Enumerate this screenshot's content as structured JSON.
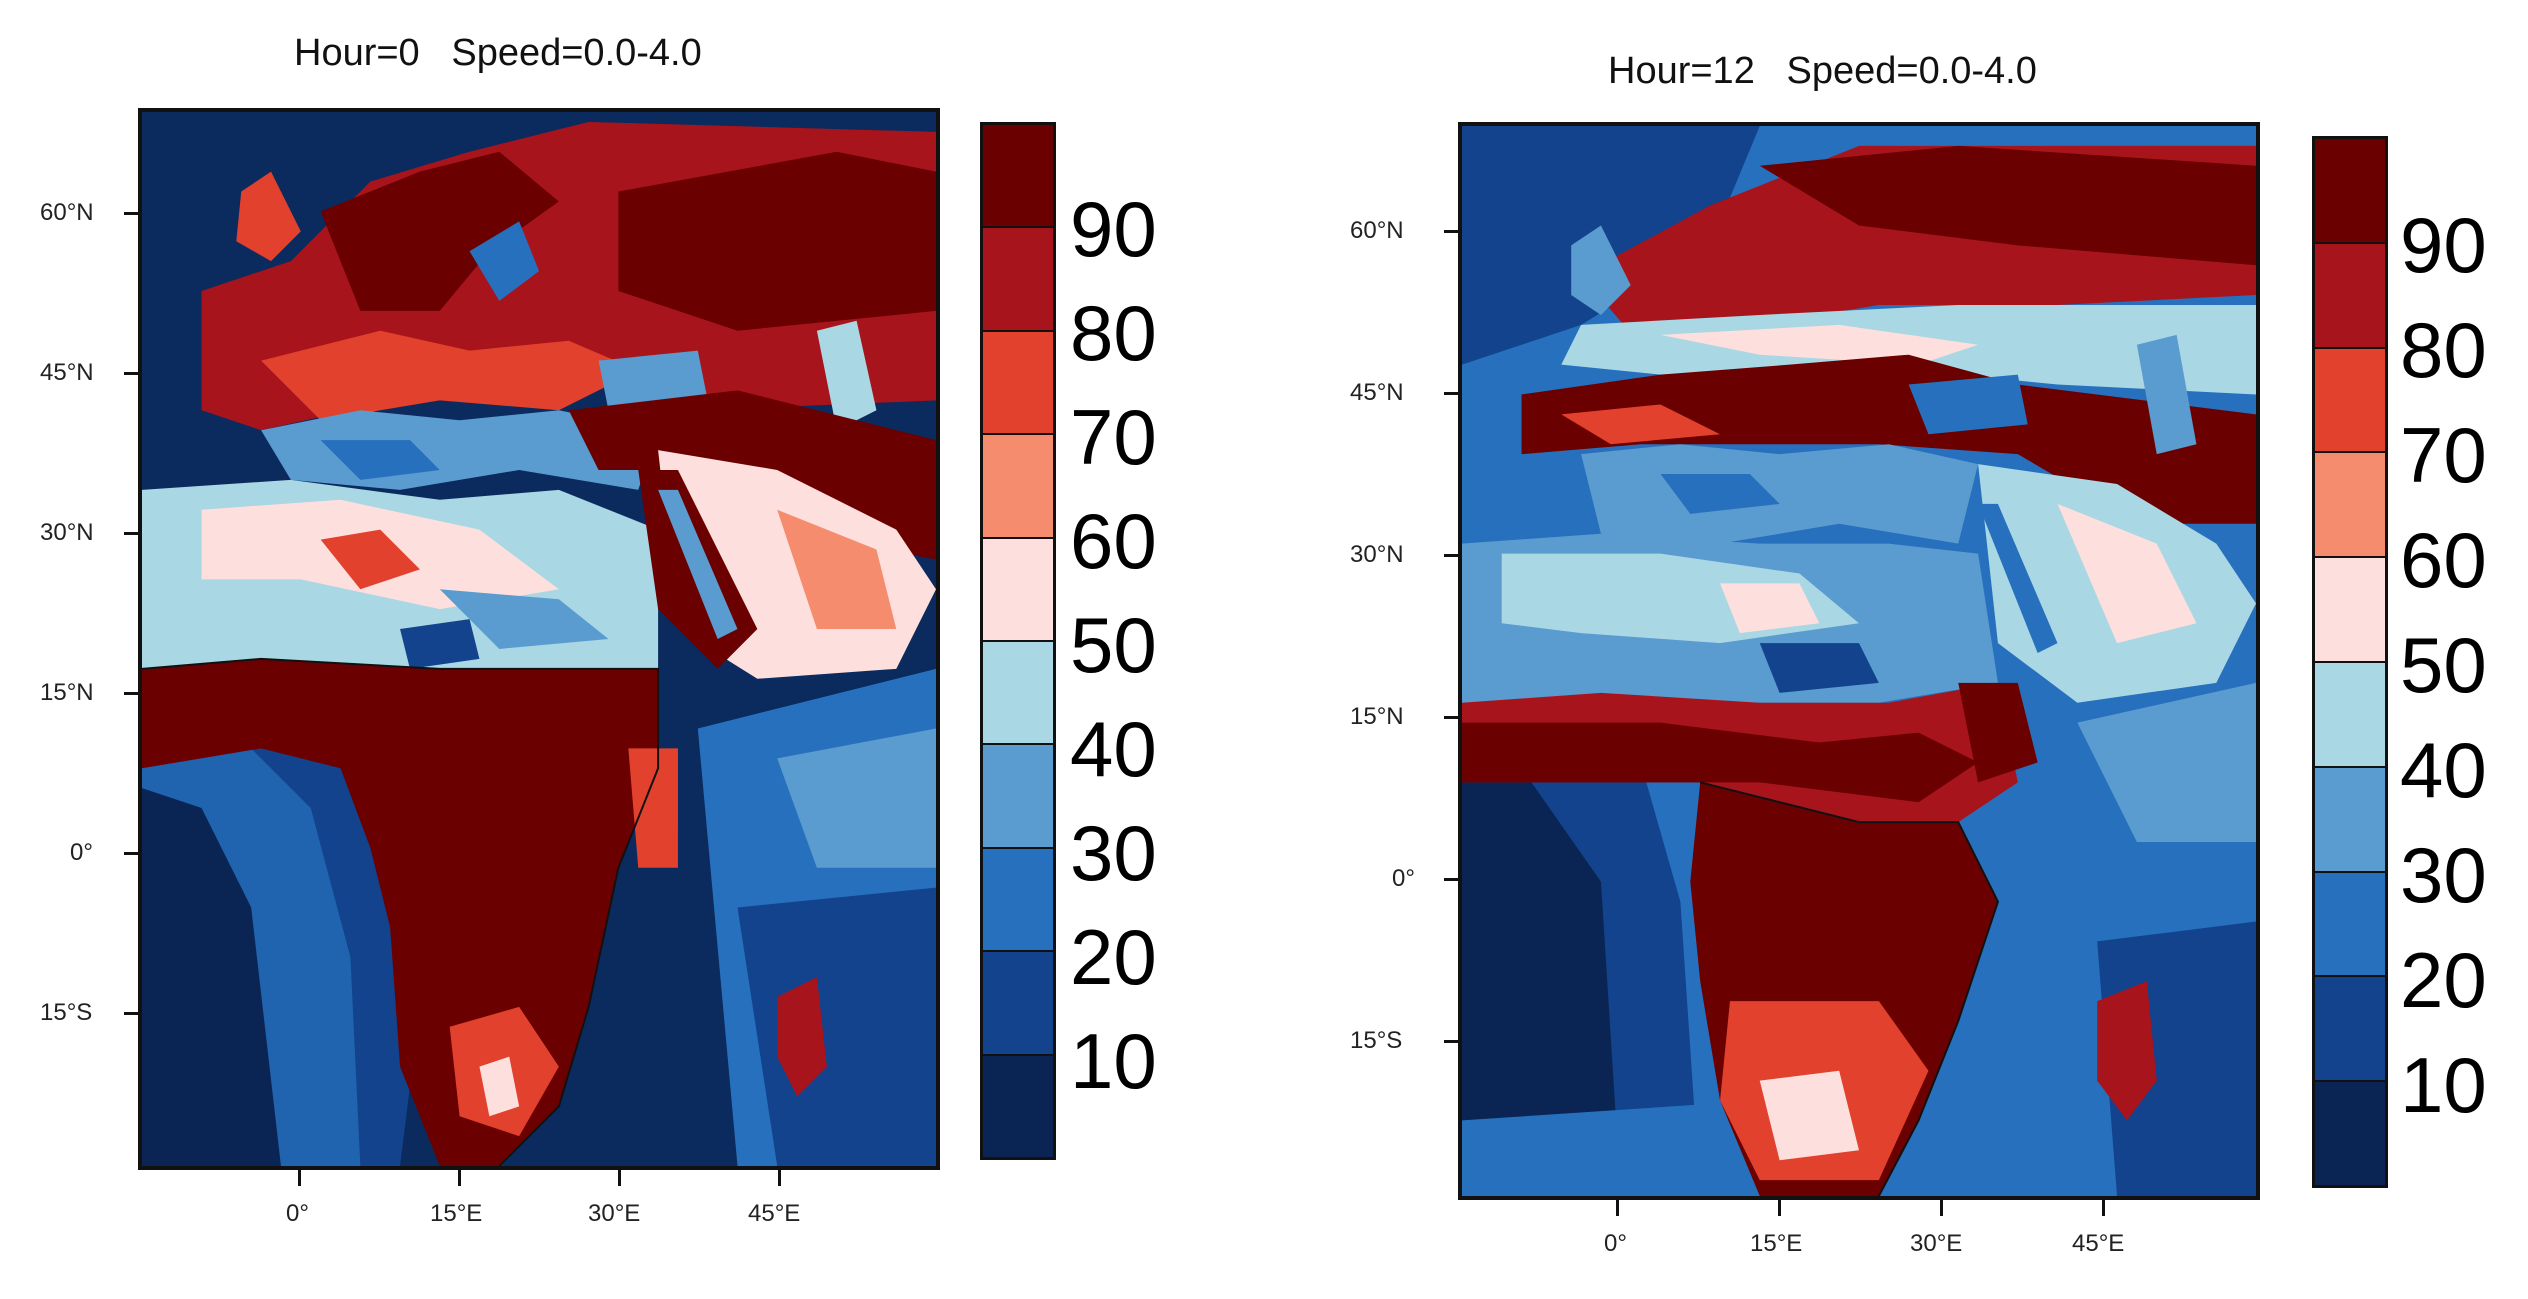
{
  "panels": [
    {
      "title": "Hour=0   Speed=0.0-4.0",
      "lat_labels": [
        "60°N",
        "45°N",
        "30°N",
        "15°N",
        "0°",
        "15°S"
      ],
      "lon_labels": [
        "0°",
        "15°E",
        "30°E",
        "45°E"
      ]
    },
    {
      "title": "Hour=12   Speed=0.0-4.0",
      "lat_labels": [
        "60°N",
        "45°N",
        "30°N",
        "15°N",
        "0°",
        "15°S"
      ],
      "lon_labels": [
        "0°",
        "15°E",
        "30°E",
        "45°E"
      ]
    }
  ],
  "colorbar": {
    "labels": [
      "90",
      "80",
      "70",
      "60",
      "50",
      "40",
      "30",
      "20",
      "10"
    ],
    "colors": [
      "#6b0000",
      "#a8141c",
      "#e2412d",
      "#f68c6e",
      "#fde0dd",
      "#a9d7e4",
      "#5a9bd0",
      "#2770bd",
      "#12438c",
      "#0a2553"
    ]
  }
}
